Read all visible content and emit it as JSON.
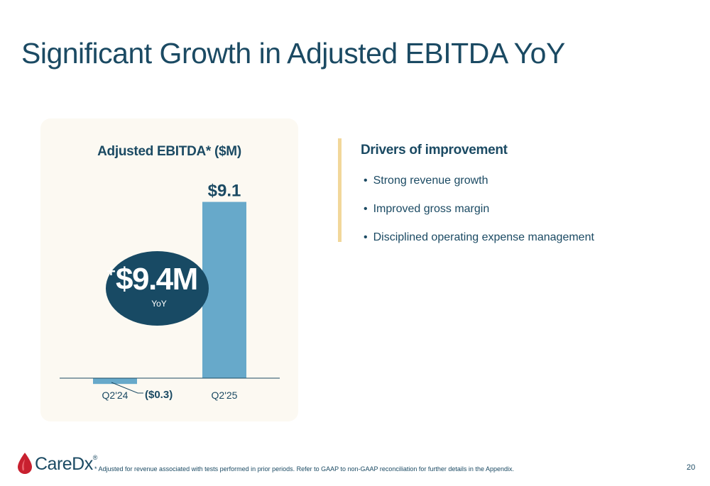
{
  "slide": {
    "title": "Significant Growth in Adjusted EBITDA YoY",
    "page_number": "20",
    "footnote": "* Adjusted for revenue associated with tests performed in prior periods. Refer to GAAP to non-GAAP reconciliation for further details in the Appendix.",
    "logo_text": "CareDx",
    "logo_mark": "®"
  },
  "callout": {
    "plus": "+",
    "value": "$9.4M",
    "sub": "YoY"
  },
  "drivers": {
    "title": "Drivers of improvement",
    "items": [
      "Strong revenue growth",
      "Improved gross margin",
      "Disciplined operating expense management"
    ]
  },
  "colors": {
    "title": "#1b4a63",
    "bar": "#67a9ca",
    "panel": "#fcf9f2",
    "callout": "#184a64",
    "accent_bar": "#f2d79a",
    "logo_red": "#c8202f"
  },
  "chart_data": {
    "type": "bar",
    "title": "Adjusted EBITDA* ($M)",
    "categories": [
      "Q2'24",
      "Q2'25"
    ],
    "values": [
      -0.3,
      9.1
    ],
    "data_labels": [
      "($0.3)",
      "$9.1"
    ],
    "ylim": [
      -0.3,
      9.1
    ],
    "grid": false,
    "legend": "none"
  }
}
